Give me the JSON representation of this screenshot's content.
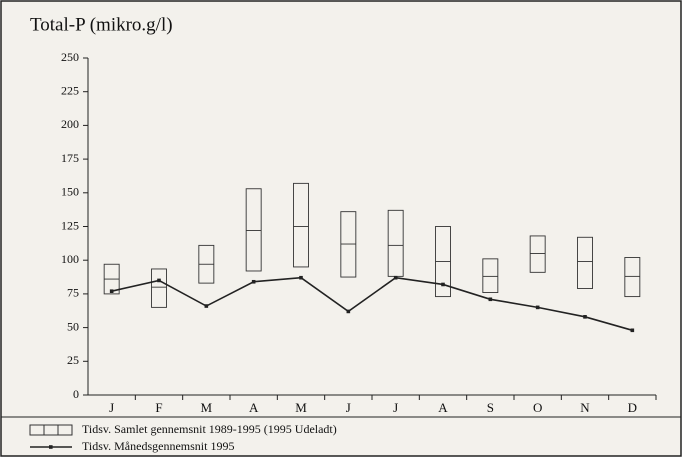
{
  "chart_data": {
    "type": "combo",
    "title": "Total-P (mikro.g/l)",
    "categories": [
      "J",
      "F",
      "M",
      "A",
      "M",
      "J",
      "J",
      "A",
      "S",
      "O",
      "N",
      "D"
    ],
    "ylim": [
      0,
      250
    ],
    "yticks": [
      0,
      25,
      50,
      75,
      100,
      125,
      150,
      175,
      200,
      225,
      250
    ],
    "grid": false,
    "series": [
      {
        "name": "Tidsv. Samlet gennemsnit  1989-1995 (1995 Udeladt)",
        "type": "box",
        "color": "#333333",
        "low": [
          75,
          65,
          83,
          92,
          95,
          87.5,
          88,
          73,
          76,
          91,
          79,
          73
        ],
        "mid": [
          86,
          80,
          97,
          122,
          125,
          112,
          111,
          99,
          88,
          105,
          99,
          88
        ],
        "high": [
          97,
          93.5,
          111,
          153,
          157,
          136,
          137,
          125,
          101,
          118,
          117,
          102
        ]
      },
      {
        "name": "Tidsv. Månedsgennemsnit  1995",
        "type": "line",
        "color": "#222222",
        "values": [
          77,
          85,
          66,
          84,
          87,
          62,
          87,
          82,
          71,
          65,
          58,
          48
        ]
      }
    ]
  }
}
